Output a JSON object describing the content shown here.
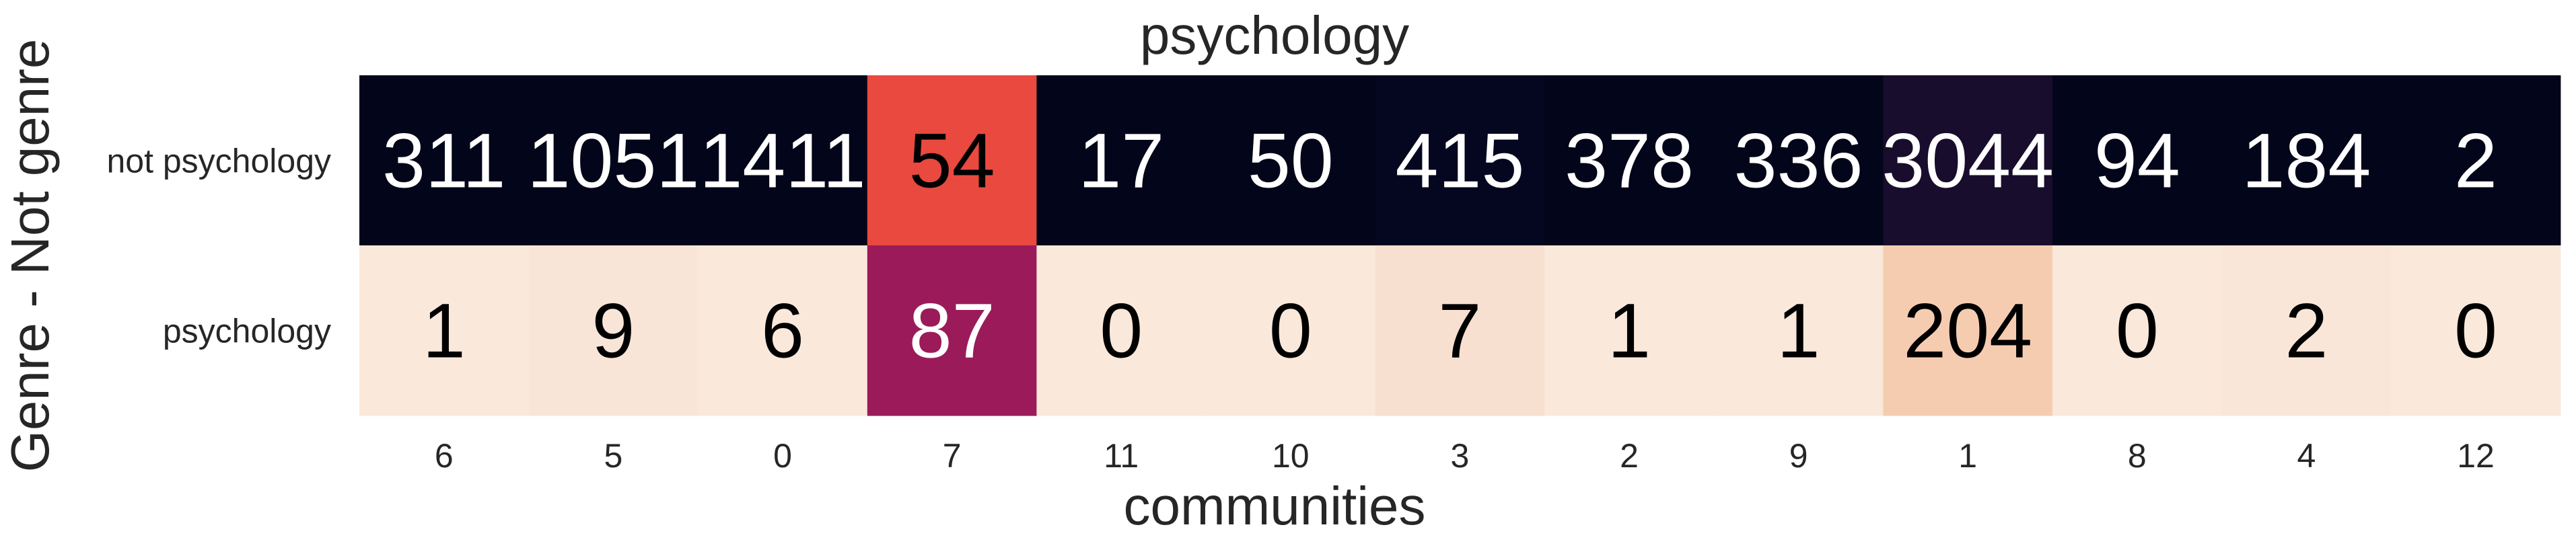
{
  "chart_data": {
    "type": "heatmap",
    "title": "psychology",
    "xlabel": "communities",
    "ylabel": "Genre - Not genre",
    "x_categories": [
      "6",
      "5",
      "0",
      "7",
      "11",
      "10",
      "3",
      "2",
      "9",
      "1",
      "8",
      "4",
      "12"
    ],
    "y_categories": [
      "not psychology",
      "psychology"
    ],
    "values": [
      [
        311,
        1051,
        1411,
        54,
        17,
        50,
        415,
        378,
        336,
        3044,
        94,
        184,
        2
      ],
      [
        1,
        9,
        6,
        87,
        0,
        0,
        7,
        1,
        1,
        204,
        0,
        2,
        0
      ]
    ],
    "cell_colors": [
      [
        "#03051a",
        "#03051a",
        "#03051a",
        "#e9493f",
        "#03051a",
        "#03051a",
        "#050720",
        "#03051a",
        "#03051a",
        "#190d2d",
        "#03051a",
        "#03051a",
        "#03051a"
      ],
      [
        "#fae8db",
        "#f9e5d8",
        "#fae8db",
        "#9b1b5a",
        "#fae8db",
        "#fae8db",
        "#f8e0d0",
        "#fae8db",
        "#fae8db",
        "#f6ccb1",
        "#fae8db",
        "#f9e6d9",
        "#fae8db"
      ]
    ],
    "text_colors": [
      [
        "#ffffff",
        "#ffffff",
        "#ffffff",
        "#000000",
        "#ffffff",
        "#ffffff",
        "#ffffff",
        "#ffffff",
        "#ffffff",
        "#ffffff",
        "#ffffff",
        "#ffffff",
        "#ffffff"
      ],
      [
        "#000000",
        "#000000",
        "#000000",
        "#ffffff",
        "#000000",
        "#000000",
        "#000000",
        "#000000",
        "#000000",
        "#000000",
        "#000000",
        "#000000",
        "#000000"
      ]
    ],
    "colorbar": false,
    "grid": false,
    "legend": "none"
  }
}
